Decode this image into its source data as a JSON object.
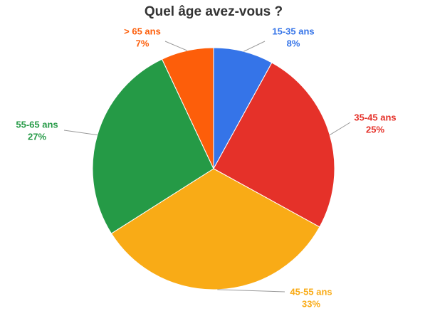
{
  "chart_data": {
    "type": "pie",
    "title": "Quel âge avez-vous ?",
    "categories": [
      "15-35 ans",
      "35-45 ans",
      "45-55 ans",
      "55-65 ans",
      "> 65 ans"
    ],
    "values": [
      8,
      25,
      33,
      27,
      7
    ],
    "value_labels": [
      "8%",
      "25%",
      "33%",
      "27%",
      "7%"
    ],
    "colors": [
      "#3574e8",
      "#e53129",
      "#f9ab16",
      "#259a46",
      "#fd5e0a"
    ]
  }
}
